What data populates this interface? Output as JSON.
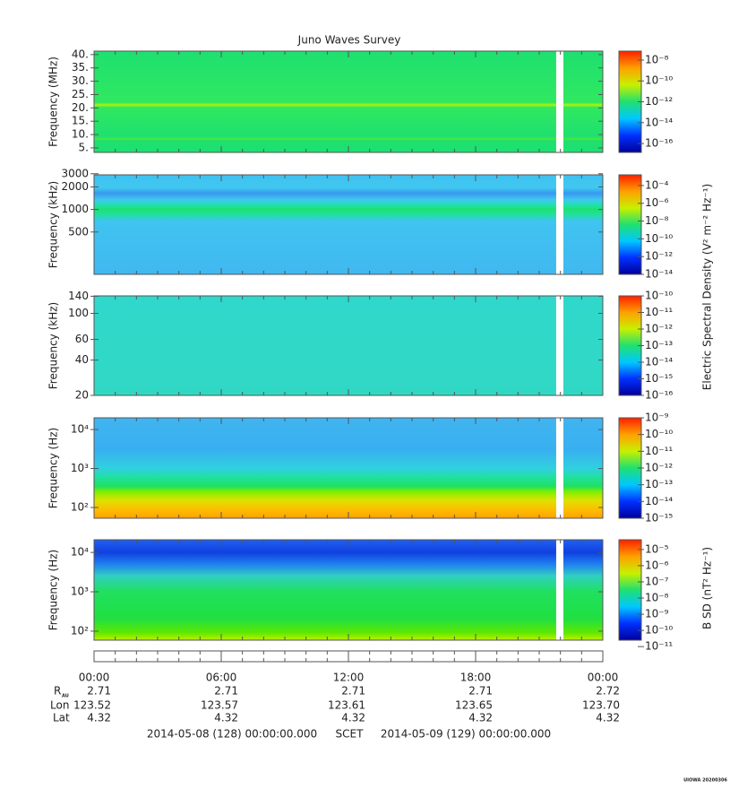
{
  "title": "Juno Waves Survey",
  "colormap": [
    "#00009c",
    "#0030ff",
    "#00c8ff",
    "#20e070",
    "#c8f000",
    "#ffa000",
    "#ff2000"
  ],
  "chart_data": [
    {
      "type": "spectrogram",
      "ylabel": "Frequency (MHz)",
      "yscale": "linear",
      "ylim": [
        3.3,
        41.3
      ],
      "yticks": [
        {
          "value": 5,
          "label": "5."
        },
        {
          "value": 10,
          "label": "10."
        },
        {
          "value": 15,
          "label": "15."
        },
        {
          "value": 20,
          "label": "20."
        },
        {
          "value": 25,
          "label": "25."
        },
        {
          "value": 30,
          "label": "30."
        },
        {
          "value": 35,
          "label": "35."
        },
        {
          "value": 40,
          "label": "40."
        }
      ],
      "spectrum": [
        {
          "y": 3.3,
          "color": "#1ee070"
        },
        {
          "y": 7.6,
          "color": "#1ee070"
        },
        {
          "y": 8.4,
          "color": "#48e840"
        },
        {
          "y": 9.2,
          "color": "#1ee070"
        },
        {
          "y": 20.2,
          "color": "#30e860"
        },
        {
          "y": 21.1,
          "color": "#b8f000"
        },
        {
          "y": 22,
          "color": "#30e860"
        },
        {
          "y": 41.3,
          "color": "#1ee070"
        }
      ],
      "clim": [
        1.4e-17,
        7.2e-08
      ],
      "cticks": [
        {
          "value": 1e-16,
          "label": "10⁻¹⁶"
        },
        {
          "value": 1e-14,
          "label": "10⁻¹⁴"
        },
        {
          "value": 1e-12,
          "label": "10⁻¹²"
        },
        {
          "value": 1e-10,
          "label": "10⁻¹⁰"
        },
        {
          "value": 1e-08,
          "label": "10⁻⁸"
        }
      ]
    },
    {
      "type": "spectrogram",
      "ylabel": "Frequency (kHz)",
      "yscale": "log",
      "ylim": [
        136,
        2900
      ],
      "yticks": [
        500,
        1000,
        2000,
        3000
      ],
      "spectrum": [
        {
          "y": 136,
          "color": "#40b8f0"
        },
        {
          "y": 700,
          "color": "#40c4f0"
        },
        {
          "y": 850,
          "color": "#20e0a0"
        },
        {
          "y": 1000,
          "color": "#20e070"
        },
        {
          "y": 1150,
          "color": "#20e0b0"
        },
        {
          "y": 1350,
          "color": "#40c8f0"
        },
        {
          "y": 1650,
          "color": "#3898f0"
        },
        {
          "y": 1950,
          "color": "#40c8f0"
        },
        {
          "y": 2900,
          "color": "#40c0f0"
        }
      ],
      "clim": [
        1e-14,
        0.0016
      ],
      "cticks": [
        {
          "value": 1e-14,
          "label": "10⁻¹⁴"
        },
        {
          "value": 1e-12,
          "label": "10⁻¹²"
        },
        {
          "value": 1e-10,
          "label": "10⁻¹⁰"
        },
        {
          "value": 1e-08,
          "label": "10⁻⁸"
        },
        {
          "value": 1e-06,
          "label": "10⁻⁶"
        },
        {
          "value": 0.0001,
          "label": "10⁻⁴"
        }
      ]
    },
    {
      "type": "spectrogram",
      "ylabel": "Frequency (kHz)",
      "yscale": "log",
      "ylim": [
        20,
        141
      ],
      "yticks": [
        20,
        40,
        60,
        100,
        140
      ],
      "spectrum": [
        {
          "y": 20,
          "color": "#30d8c4"
        },
        {
          "y": 141,
          "color": "#30d8cc"
        }
      ],
      "clim": [
        1e-16,
        1e-10
      ],
      "cticks": [
        {
          "value": 1e-16,
          "label": "10⁻¹⁶"
        },
        {
          "value": 1e-15,
          "label": "10⁻¹⁵"
        },
        {
          "value": 1e-14,
          "label": "10⁻¹⁴"
        },
        {
          "value": 1e-13,
          "label": "10⁻¹³"
        },
        {
          "value": 1e-12,
          "label": "10⁻¹²"
        },
        {
          "value": 1e-11,
          "label": "10⁻¹¹"
        },
        {
          "value": 1e-10,
          "label": "10⁻¹⁰"
        }
      ]
    },
    {
      "type": "spectrogram",
      "ylabel": "Frequency (Hz)",
      "yscale": "log",
      "ylim": [
        53,
        20000
      ],
      "yticks": [
        {
          "value": 100,
          "label": "10²"
        },
        {
          "value": 1000,
          "label": "10³"
        },
        {
          "value": 10000,
          "label": "10⁴"
        }
      ],
      "spectrum": [
        {
          "y": 53,
          "color": "#ffa000"
        },
        {
          "y": 80,
          "color": "#ffb800"
        },
        {
          "y": 150,
          "color": "#e0e000"
        },
        {
          "y": 250,
          "color": "#80f000"
        },
        {
          "y": 350,
          "color": "#20e060"
        },
        {
          "y": 600,
          "color": "#20e0a0"
        },
        {
          "y": 1000,
          "color": "#30d0e0"
        },
        {
          "y": 3000,
          "color": "#38b0f0"
        },
        {
          "y": 20000,
          "color": "#40b4f0"
        }
      ],
      "clim": [
        1e-15,
        1e-09
      ],
      "cticks": [
        {
          "value": 1e-15,
          "label": "10⁻¹⁵"
        },
        {
          "value": 1e-14,
          "label": "10⁻¹⁴"
        },
        {
          "value": 1e-13,
          "label": "10⁻¹³"
        },
        {
          "value": 1e-12,
          "label": "10⁻¹²"
        },
        {
          "value": 1e-11,
          "label": "10⁻¹¹"
        },
        {
          "value": 1e-10,
          "label": "10⁻¹⁰"
        },
        {
          "value": 1e-09,
          "label": "10⁻⁹"
        }
      ]
    },
    {
      "type": "spectrogram",
      "ylabel": "Frequency (Hz)",
      "yscale": "log",
      "ylim": [
        59,
        21000
      ],
      "yticks": [
        {
          "value": 100,
          "label": "10²"
        },
        {
          "value": 1000,
          "label": "10³"
        },
        {
          "value": 10000,
          "label": "10⁴"
        }
      ],
      "spectrum": [
        {
          "y": 59,
          "color": "#c0f000"
        },
        {
          "y": 90,
          "color": "#60e800"
        },
        {
          "y": 200,
          "color": "#20e040"
        },
        {
          "y": 1000,
          "color": "#20e060"
        },
        {
          "y": 2500,
          "color": "#30d0c0"
        },
        {
          "y": 5000,
          "color": "#2080f0"
        },
        {
          "y": 10000,
          "color": "#1040e0"
        },
        {
          "y": 21000,
          "color": "#2060f0"
        }
      ],
      "clim": [
        2.5e-11,
        4e-05
      ],
      "cticks": [
        {
          "value": 1e-11,
          "label": "10⁻¹¹"
        },
        {
          "value": 1e-10,
          "label": "10⁻¹⁰"
        },
        {
          "value": 1e-09,
          "label": "10⁻⁹"
        },
        {
          "value": 1e-08,
          "label": "10⁻⁸"
        },
        {
          "value": 1e-07,
          "label": "10⁻⁷"
        },
        {
          "value": 1e-06,
          "label": "10⁻⁶"
        },
        {
          "value": 1e-05,
          "label": "10⁻⁵"
        }
      ]
    }
  ],
  "colorbar_titles": [
    "Electric Spectral Density (V² m⁻² Hz⁻¹)",
    "B SD (nT² Hz⁻¹)"
  ],
  "time_axis": {
    "xlim": [
      0,
      24
    ],
    "minor_step": 1,
    "gap": [
      21.8,
      22.14
    ],
    "xticks": [
      {
        "value": 0,
        "label": "00:00"
      },
      {
        "value": 6,
        "label": "06:00"
      },
      {
        "value": 12,
        "label": "12:00"
      },
      {
        "value": 18,
        "label": "18:00"
      },
      {
        "value": 24,
        "label": "00:00"
      }
    ]
  },
  "ephemeris": [
    {
      "label": "R",
      "sub": "AU",
      "values": [
        "2.71",
        "2.71",
        "2.71",
        "2.71",
        "2.72"
      ]
    },
    {
      "label": "Lon",
      "values": [
        "123.52",
        "123.57",
        "123.61",
        "123.65",
        "123.70"
      ]
    },
    {
      "label": "Lat",
      "values": [
        "4.32",
        "4.32",
        "4.32",
        "4.32",
        "4.32"
      ]
    }
  ],
  "scet": {
    "start": "2014-05-08 (128) 00:00:00.000",
    "label": "SCET",
    "end": "2014-05-09 (129) 00:00:00.000"
  },
  "credit": "UIOWA 20200306"
}
